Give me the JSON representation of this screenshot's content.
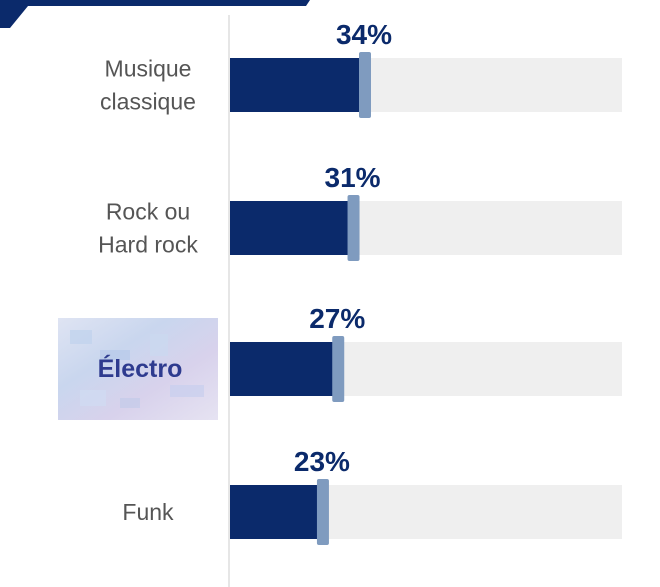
{
  "chart_data": {
    "type": "bar",
    "orientation": "horizontal",
    "categories": [
      [
        "Musique",
        "classique"
      ],
      [
        "Rock ou",
        "Hard rock"
      ],
      [
        "Électro"
      ],
      [
        "Funk"
      ]
    ],
    "values": [
      34,
      31,
      27,
      23
    ],
    "data_labels": [
      "34%",
      "31%",
      "27%",
      "23%"
    ],
    "highlighted_category": "Électro",
    "xlim": [
      0,
      100
    ],
    "grid": false,
    "legend": "none"
  },
  "colors": {
    "bar_fill": "#0b2a6b",
    "bar_track": "#efefef",
    "bar_cap": "#7f9bbf",
    "label_value": "#0b2a6b",
    "axis_line": "#e6e6e6",
    "category_text": "#555555",
    "highlight_text": "#2e3b8f",
    "corner_banner": "#0b2a6b"
  }
}
